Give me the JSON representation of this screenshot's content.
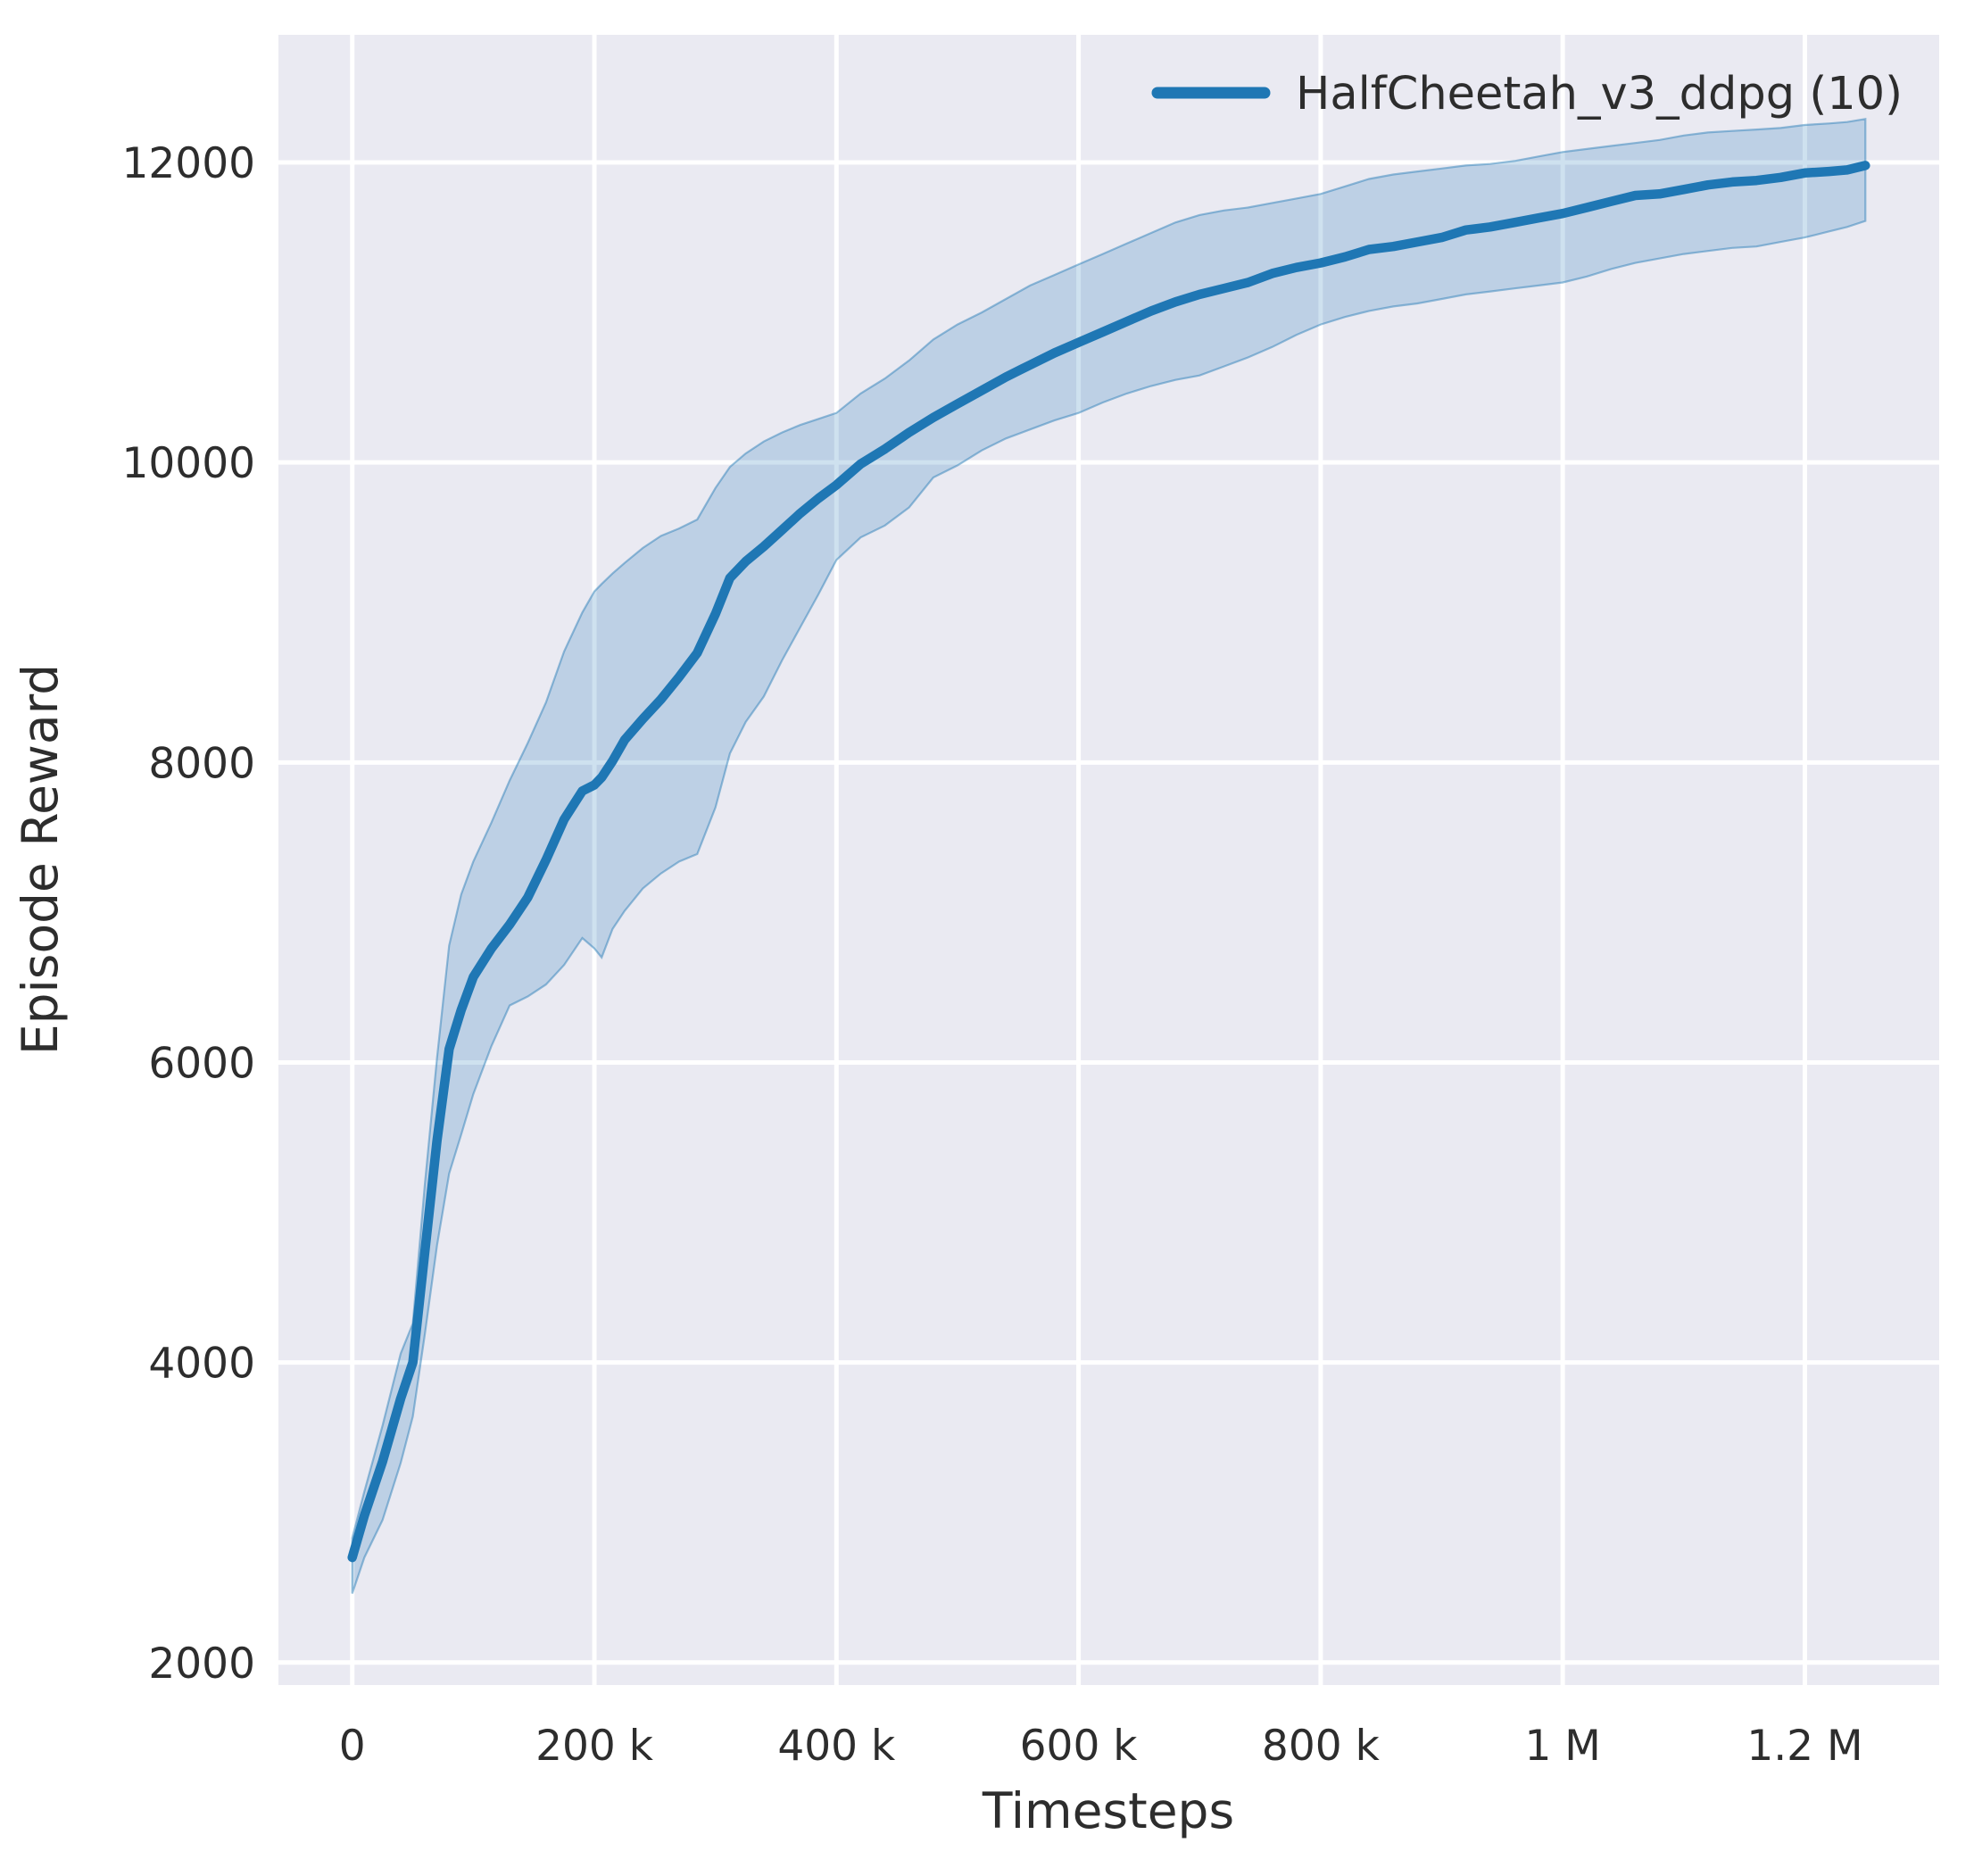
{
  "chart_data": {
    "type": "line",
    "title": "",
    "xlabel": "Timesteps",
    "ylabel": "Episode Reward",
    "grid": true,
    "legend_position": "upper right",
    "xlim": [
      -61000,
      1311000
    ],
    "ylim": [
      1850,
      12851
    ],
    "x_ticks": [
      {
        "value": 0,
        "label": "0"
      },
      {
        "value": 200000,
        "label": "200 k"
      },
      {
        "value": 400000,
        "label": "400 k"
      },
      {
        "value": 600000,
        "label": "600 k"
      },
      {
        "value": 800000,
        "label": "800 k"
      },
      {
        "value": 1000000,
        "label": "1 M"
      },
      {
        "value": 1200000,
        "label": "1.2 M"
      }
    ],
    "y_ticks": [
      {
        "value": 2000,
        "label": "2000"
      },
      {
        "value": 4000,
        "label": "4000"
      },
      {
        "value": 6000,
        "label": "6000"
      },
      {
        "value": 8000,
        "label": "8000"
      },
      {
        "value": 10000,
        "label": "10000"
      },
      {
        "value": 12000,
        "label": "12000"
      }
    ],
    "colors": {
      "line": "#1f77b4",
      "band_fill": "rgba(31,119,180,0.22)",
      "band_edge": "rgba(31,119,180,0.45)",
      "plot_bg": "#eaeaf2",
      "grid": "#ffffff",
      "text": "#2d2d2d"
    },
    "series": [
      {
        "name": "HalfCheetah_v3_ddpg (10)",
        "color": "#1f77b4",
        "x": [
          0,
          10000,
          25000,
          40000,
          50000,
          60000,
          70000,
          80000,
          90000,
          100000,
          115000,
          130000,
          145000,
          160000,
          175000,
          190000,
          200000,
          206000,
          215000,
          225000,
          240000,
          255000,
          270000,
          285000,
          300000,
          312000,
          325000,
          340000,
          355000,
          370000,
          385000,
          400000,
          420000,
          440000,
          460000,
          480000,
          500000,
          520000,
          540000,
          560000,
          580000,
          600000,
          620000,
          640000,
          660000,
          680000,
          700000,
          720000,
          740000,
          760000,
          780000,
          800000,
          820000,
          840000,
          860000,
          880000,
          900000,
          920000,
          940000,
          960000,
          980000,
          1000000,
          1020000,
          1040000,
          1060000,
          1080000,
          1100000,
          1120000,
          1140000,
          1160000,
          1180000,
          1200000,
          1220000,
          1235000,
          1250000
        ],
        "mean": [
          2700,
          2980,
          3340,
          3760,
          4000,
          4740,
          5480,
          6090,
          6350,
          6570,
          6760,
          6920,
          7100,
          7350,
          7620,
          7810,
          7850,
          7900,
          8010,
          8150,
          8290,
          8420,
          8570,
          8730,
          8990,
          9230,
          9340,
          9440,
          9550,
          9660,
          9760,
          9850,
          9990,
          10090,
          10200,
          10300,
          10390,
          10480,
          10570,
          10650,
          10730,
          10800,
          10870,
          10940,
          11010,
          11070,
          11120,
          11160,
          11200,
          11260,
          11300,
          11330,
          11370,
          11420,
          11440,
          11470,
          11500,
          11550,
          11570,
          11600,
          11630,
          11660,
          11700,
          11740,
          11780,
          11790,
          11820,
          11850,
          11870,
          11880,
          11900,
          11930,
          11940,
          11950,
          11980
        ],
        "lower": [
          2460,
          2700,
          2950,
          3330,
          3640,
          4190,
          4780,
          5260,
          5520,
          5790,
          6110,
          6380,
          6440,
          6520,
          6650,
          6830,
          6760,
          6700,
          6890,
          7010,
          7160,
          7260,
          7340,
          7390,
          7700,
          8060,
          8270,
          8440,
          8680,
          8900,
          9120,
          9350,
          9500,
          9580,
          9700,
          9900,
          9980,
          10080,
          10160,
          10220,
          10280,
          10330,
          10400,
          10460,
          10510,
          10550,
          10580,
          10640,
          10700,
          10770,
          10850,
          10920,
          10970,
          11010,
          11040,
          11060,
          11090,
          11120,
          11140,
          11160,
          11180,
          11200,
          11240,
          11290,
          11330,
          11360,
          11390,
          11410,
          11430,
          11440,
          11470,
          11500,
          11540,
          11570,
          11610
        ],
        "upper": [
          2830,
          3140,
          3580,
          4060,
          4260,
          5190,
          6030,
          6780,
          7120,
          7340,
          7600,
          7880,
          8130,
          8400,
          8740,
          9000,
          9140,
          9190,
          9260,
          9330,
          9430,
          9510,
          9560,
          9620,
          9830,
          9970,
          10060,
          10140,
          10200,
          10250,
          10290,
          10330,
          10460,
          10560,
          10680,
          10820,
          10920,
          11000,
          11090,
          11180,
          11250,
          11320,
          11390,
          11460,
          11530,
          11600,
          11650,
          11680,
          11700,
          11730,
          11760,
          11790,
          11840,
          11890,
          11920,
          11940,
          11960,
          11980,
          11990,
          12010,
          12040,
          12070,
          12090,
          12110,
          12130,
          12150,
          12180,
          12200,
          12210,
          12220,
          12230,
          12250,
          12260,
          12270,
          12290
        ]
      }
    ]
  }
}
